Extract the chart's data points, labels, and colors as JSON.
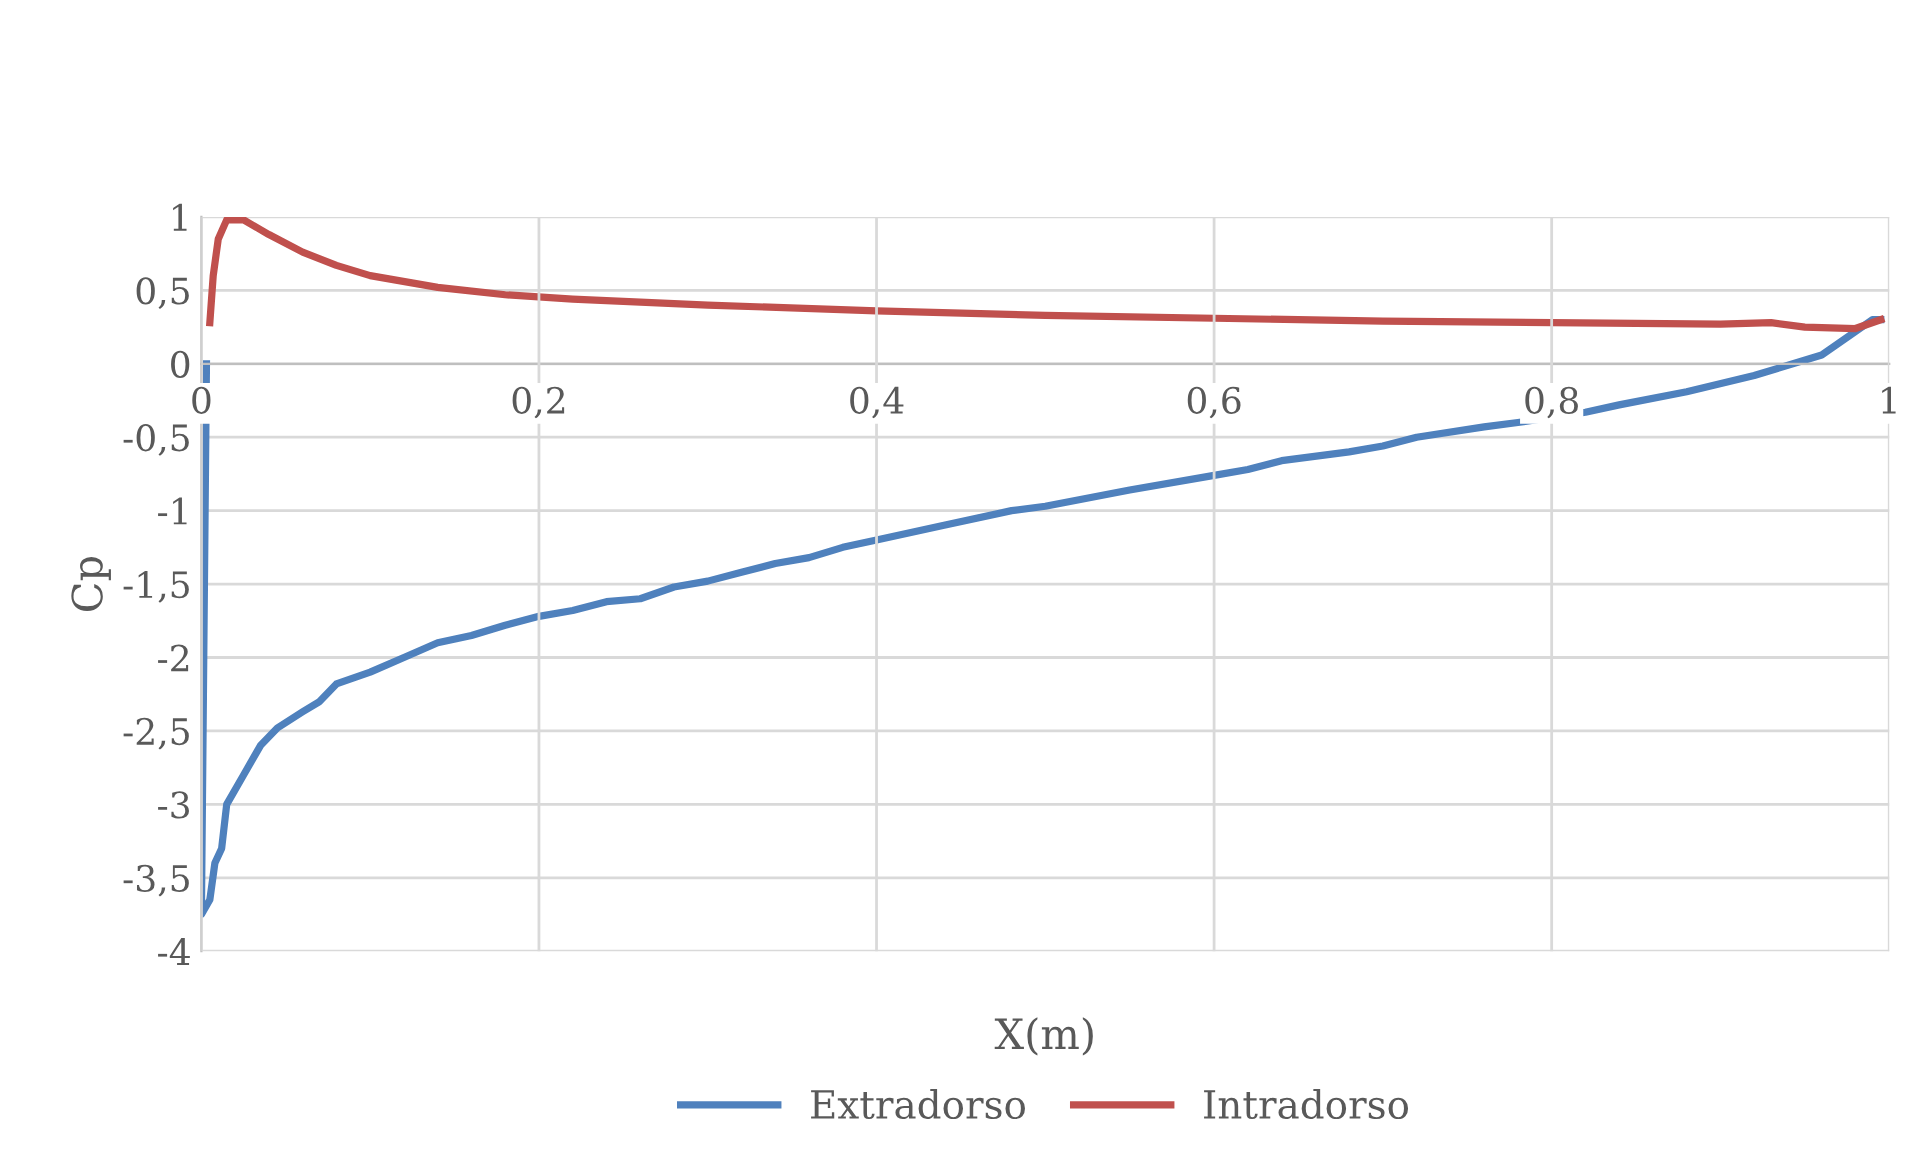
{
  "chart_data": {
    "type": "line",
    "xlabel": "X(m)",
    "ylabel": "Cp",
    "xlim": [
      0,
      1
    ],
    "xticks": [
      0,
      {
        "value": 0.2,
        "label": "0,2"
      },
      {
        "value": 0.4,
        "label": "0,4"
      },
      {
        "value": 0.6,
        "label": "0,6"
      },
      {
        "value": 0.8,
        "label": "0,8"
      },
      1
    ],
    "ylim": [
      -4,
      1
    ],
    "yticks": [
      -4,
      {
        "value": -3.5,
        "label": "-3,5"
      },
      -3,
      {
        "value": -2.5,
        "label": "-2,5"
      },
      -2,
      {
        "value": -1.5,
        "label": "-1,5"
      },
      -1,
      {
        "value": -0.5,
        "label": "-0,5"
      },
      0,
      {
        "value": 0.5,
        "label": "0,5"
      },
      1
    ],
    "grid": true,
    "legend": "bottom",
    "marker": "none",
    "line_style": "solid",
    "series": [
      {
        "name": "Extradorso",
        "color": "#4f81bd",
        "x": [
          0.003,
          0.0,
          0.005,
          0.008,
          0.012,
          0.015,
          0.025,
          0.035,
          0.045,
          0.06,
          0.07,
          0.08,
          0.1,
          0.12,
          0.14,
          0.16,
          0.18,
          0.2,
          0.22,
          0.24,
          0.26,
          0.28,
          0.3,
          0.32,
          0.34,
          0.36,
          0.38,
          0.4,
          0.44,
          0.48,
          0.5,
          0.55,
          0.6,
          0.62,
          0.64,
          0.68,
          0.7,
          0.72,
          0.76,
          0.78,
          0.82,
          0.84,
          0.88,
          0.92,
          0.96,
          0.98,
          0.99,
          0.995
        ],
        "values": [
          0.0,
          -3.75,
          -3.65,
          -3.4,
          -3.3,
          -3.0,
          -2.8,
          -2.6,
          -2.48,
          -2.37,
          -2.3,
          -2.18,
          -2.1,
          -2.0,
          -1.9,
          -1.85,
          -1.78,
          -1.72,
          -1.68,
          -1.62,
          -1.6,
          -1.52,
          -1.48,
          -1.42,
          -1.36,
          -1.32,
          -1.25,
          -1.2,
          -1.1,
          -1.0,
          -0.97,
          -0.86,
          -0.76,
          -0.72,
          -0.66,
          -0.6,
          -0.56,
          -0.5,
          -0.43,
          -0.4,
          -0.33,
          -0.28,
          -0.19,
          -0.08,
          0.06,
          0.22,
          0.3,
          0.3
        ]
      },
      {
        "name": "Intradorso",
        "color": "#c0504d",
        "x": [
          0.005,
          0.007,
          0.01,
          0.015,
          0.025,
          0.04,
          0.06,
          0.08,
          0.1,
          0.14,
          0.18,
          0.22,
          0.3,
          0.4,
          0.5,
          0.6,
          0.7,
          0.8,
          0.9,
          0.93,
          0.95,
          0.98,
          0.995
        ],
        "values": [
          0.28,
          0.6,
          0.85,
          0.98,
          0.98,
          0.88,
          0.76,
          0.67,
          0.6,
          0.52,
          0.47,
          0.44,
          0.4,
          0.36,
          0.33,
          0.31,
          0.29,
          0.28,
          0.27,
          0.28,
          0.25,
          0.24,
          0.3
        ]
      }
    ]
  }
}
